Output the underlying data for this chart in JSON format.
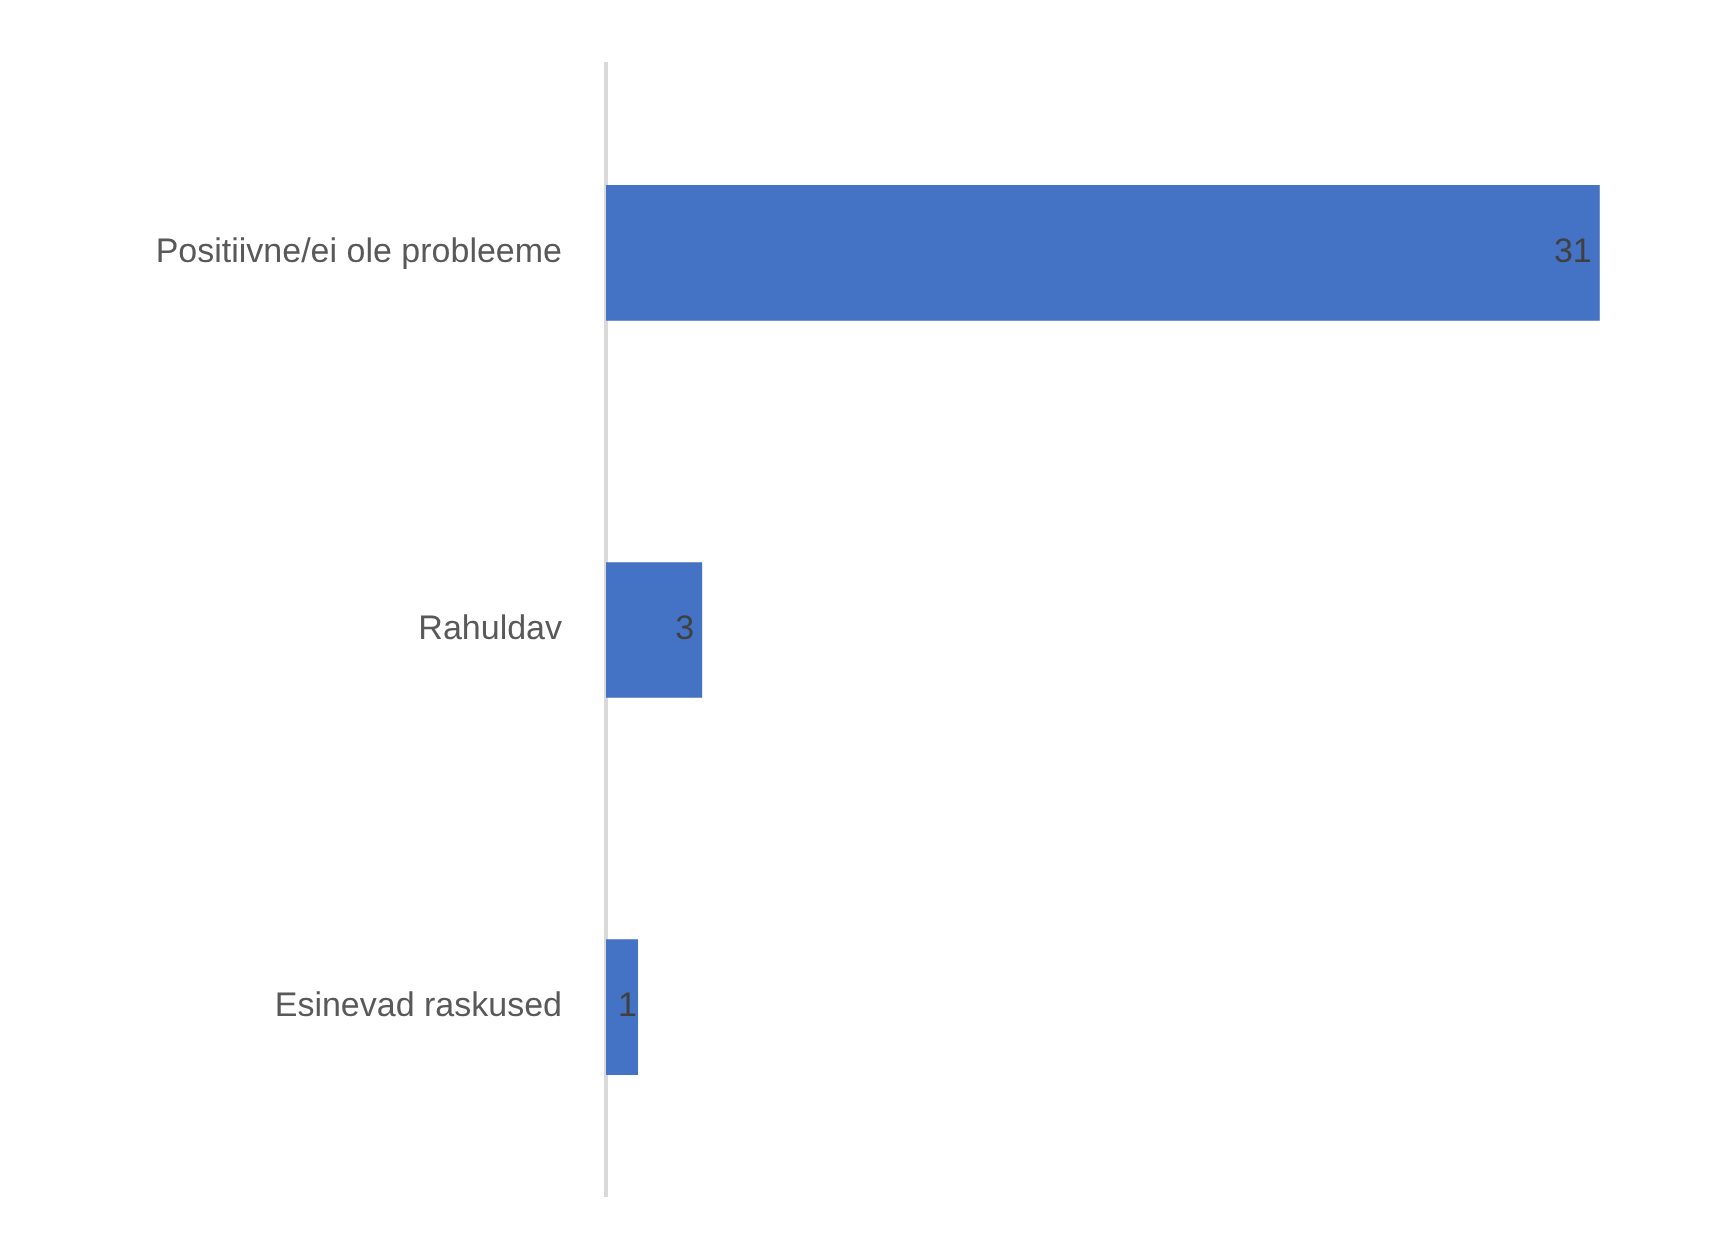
{
  "chart_data": {
    "type": "bar",
    "orientation": "horizontal",
    "categories": [
      "Positiivne/ei ole probleeme",
      "Rahuldav",
      "Esinevad raskused"
    ],
    "values": [
      31,
      3,
      1
    ],
    "color": "#4472c4",
    "data_labels": true,
    "grid": false,
    "legend": false
  }
}
